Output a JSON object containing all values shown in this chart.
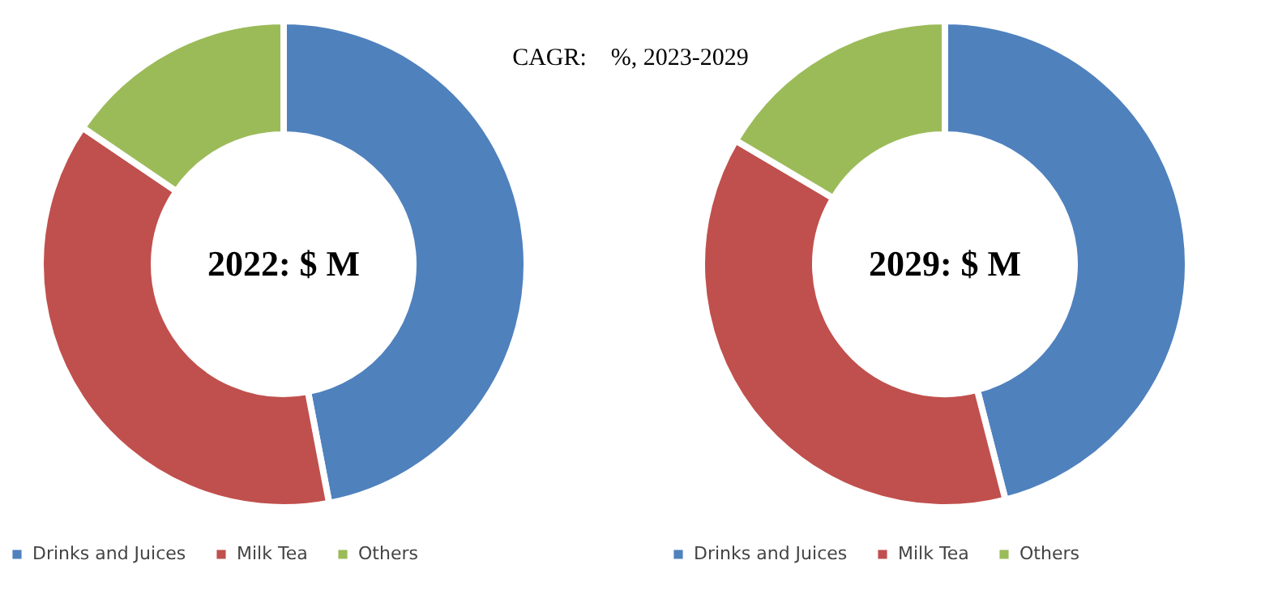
{
  "chart_data": [
    {
      "type": "donut",
      "title": "2022: $ M",
      "annotations": [
        "CAGR:    %, 2023-2029"
      ],
      "categories": [
        "Drinks and Juices",
        "Milk Tea",
        "Others"
      ],
      "values": [
        47,
        37.5,
        15.5
      ],
      "colors": [
        "#4f81bd",
        "#c0504d",
        "#9bbb59"
      ],
      "legend": "bottom"
    },
    {
      "type": "donut",
      "title": "2029: $ M",
      "categories": [
        "Drinks and Juices",
        "Milk Tea",
        "Others"
      ],
      "values": [
        46,
        37.5,
        16.5
      ],
      "colors": [
        "#4f81bd",
        "#c0504d",
        "#9bbb59"
      ],
      "legend": "bottom"
    }
  ]
}
